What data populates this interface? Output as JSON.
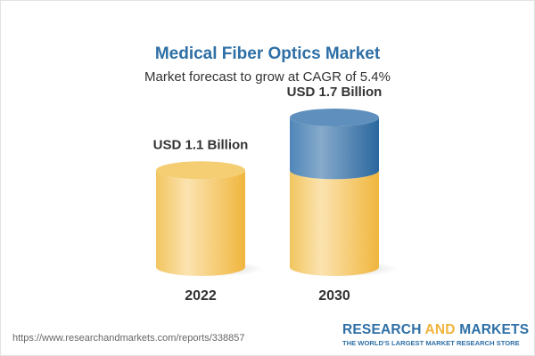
{
  "chart_data": {
    "type": "bar",
    "title": "Medical Fiber Optics Market",
    "subtitle": "Market forecast to grow at CAGR of 5.4%",
    "categories": [
      "2022",
      "2030"
    ],
    "values": [
      1.1,
      1.7
    ],
    "data_labels": [
      "USD 1.1 Billion",
      "USD 1.7 Billion"
    ],
    "unit": "USD Billion",
    "style": "3d-cylinder",
    "colors": {
      "base": "#f3c25a",
      "growth": "#3d7bb0",
      "title": "#2e6fa6"
    },
    "grid": false,
    "legend": "none"
  },
  "footer": {
    "url": "https://www.researchandmarkets.com/reports/338857",
    "logo_word1": "RESEARCH ",
    "logo_word2": "AND",
    "logo_word3": " MARKETS",
    "tagline": "THE WORLD'S LARGEST MARKET RESEARCH STORE"
  }
}
